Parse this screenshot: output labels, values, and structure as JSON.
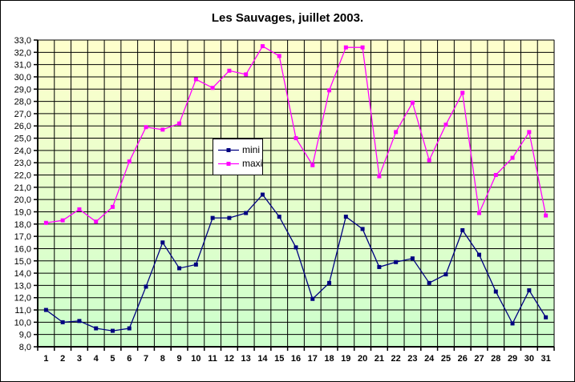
{
  "chart_data": {
    "type": "line",
    "title": "Les Sauvages, juillet 2003.",
    "categories": [
      "1",
      "2",
      "3",
      "4",
      "5",
      "6",
      "7",
      "8",
      "9",
      "10",
      "11",
      "12",
      "13",
      "14",
      "15",
      "16",
      "17",
      "18",
      "19",
      "20",
      "21",
      "22",
      "23",
      "24",
      "25",
      "26",
      "27",
      "28",
      "29",
      "30",
      "31"
    ],
    "series": [
      {
        "name": "mini",
        "color": "#000080",
        "values": [
          11.0,
          10.0,
          10.1,
          9.5,
          9.3,
          9.5,
          12.9,
          16.5,
          14.4,
          14.7,
          18.5,
          18.5,
          18.9,
          20.4,
          18.6,
          16.1,
          11.9,
          13.2,
          18.6,
          17.6,
          14.5,
          14.9,
          15.2,
          13.2,
          13.9,
          17.5,
          15.5,
          12.5,
          9.9,
          12.6,
          10.4
        ]
      },
      {
        "name": "maxi",
        "color": "#FF00FF",
        "values": [
          18.1,
          18.3,
          19.2,
          18.2,
          19.4,
          23.1,
          25.9,
          25.7,
          26.2,
          29.8,
          29.1,
          30.5,
          30.2,
          32.5,
          31.7,
          25.0,
          22.8,
          28.9,
          32.4,
          32.4,
          21.9,
          25.5,
          27.9,
          23.2,
          26.1,
          28.7,
          18.9,
          22.0,
          23.4,
          25.5,
          18.7
        ]
      }
    ],
    "xlabel": "",
    "ylabel": "",
    "ylim": [
      8,
      33
    ],
    "ytick_step": 1,
    "yticklabels": [
      "33,0",
      "32,0",
      "31,0",
      "30,0",
      "29,0",
      "28,0",
      "27,0",
      "26,0",
      "25,0",
      "24,0",
      "23,0",
      "22,0",
      "21,0",
      "20,0",
      "19,0",
      "18,0",
      "17,0",
      "16,0",
      "15,0",
      "14,0",
      "13,0",
      "12,0",
      "11,0",
      "10,0",
      "9,0",
      "8,0"
    ],
    "decimal_separator": ",",
    "grid": true,
    "gridline_color": "#000000",
    "axis_color": "#000000",
    "plot_border_color": "#808080",
    "plot_bg_gradient": [
      "#FFFFCC",
      "#CCFFCC"
    ],
    "legend_position": "inside-left-center",
    "marker_shape": "square"
  }
}
